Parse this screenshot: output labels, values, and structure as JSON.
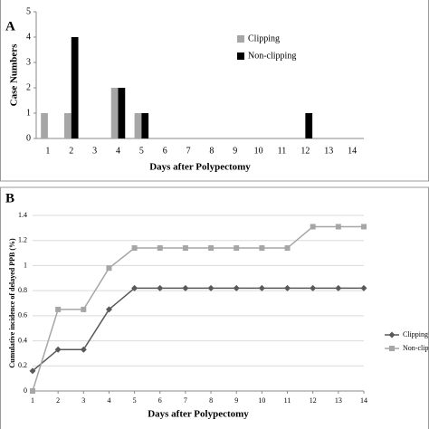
{
  "chart_data": [
    {
      "type": "bar",
      "panel": "A",
      "xlabel": "Days after Polypectomy",
      "ylabel": "Case Numbers",
      "categories": [
        "1",
        "2",
        "3",
        "4",
        "5",
        "6",
        "7",
        "8",
        "9",
        "10",
        "11",
        "12",
        "13",
        "14"
      ],
      "series": [
        {
          "name": "Clipping",
          "color": "#a6a6a6",
          "values": [
            1,
            1,
            0,
            2,
            1,
            0,
            0,
            0,
            0,
            0,
            0,
            0,
            0,
            0
          ]
        },
        {
          "name": "Non-clipping",
          "color": "#000000",
          "values": [
            0,
            4,
            0,
            2,
            1,
            0,
            0,
            0,
            0,
            0,
            0,
            1,
            0,
            0
          ]
        }
      ],
      "ylim": [
        0,
        5
      ],
      "yticks": [
        0,
        1,
        2,
        3,
        4,
        5
      ],
      "grid": false,
      "legend": "top-right"
    },
    {
      "type": "line",
      "panel": "B",
      "xlabel": "Days after Polypectomy",
      "ylabel": "Cumulative incidence of delayed PPB (%)",
      "x": [
        1,
        2,
        3,
        4,
        5,
        6,
        7,
        8,
        9,
        10,
        11,
        12,
        13,
        14
      ],
      "series": [
        {
          "name": "Clipping",
          "color": "#595959",
          "marker": "diamond",
          "values": [
            0.16,
            0.33,
            0.33,
            0.65,
            0.82,
            0.82,
            0.82,
            0.82,
            0.82,
            0.82,
            0.82,
            0.82,
            0.82,
            0.82
          ]
        },
        {
          "name": "Non-clipping",
          "color": "#a6a6a6",
          "marker": "square",
          "values": [
            0,
            0.65,
            0.65,
            0.98,
            1.14,
            1.14,
            1.14,
            1.14,
            1.14,
            1.14,
            1.14,
            1.31,
            1.31,
            1.31
          ]
        }
      ],
      "xlim": [
        1,
        14
      ],
      "xticks": [
        1,
        2,
        3,
        4,
        5,
        6,
        7,
        8,
        9,
        10,
        11,
        12,
        13,
        14
      ],
      "ylim": [
        0,
        1.4
      ],
      "yticks": [
        0,
        0.2,
        0.4,
        0.6,
        0.8,
        1,
        1.2,
        1.4
      ],
      "grid": true,
      "legend": "right"
    }
  ]
}
